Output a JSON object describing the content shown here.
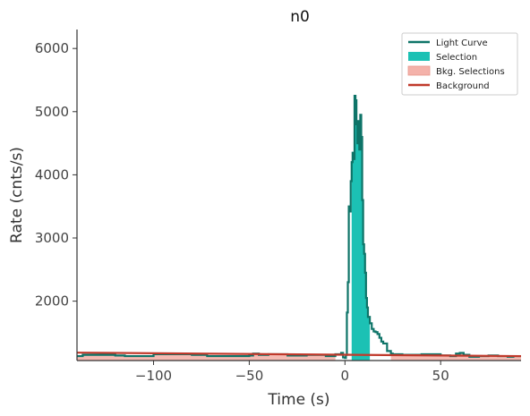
{
  "chart_data": {
    "type": "line",
    "title": "n0",
    "xlabel": "Time (s)",
    "ylabel": "Rate (cnts/s)",
    "xlim": [
      -140,
      92
    ],
    "ylim": [
      1060,
      6300
    ],
    "xticks": [
      -100,
      -50,
      0,
      50
    ],
    "xtick_labels": [
      "−100",
      "−50",
      "0",
      "50"
    ],
    "yticks": [
      2000,
      3000,
      4000,
      5000,
      6000
    ],
    "ytick_labels": [
      "2000",
      "3000",
      "4000",
      "5000",
      "6000"
    ],
    "grid": false,
    "legend_position": "top-right",
    "colors": {
      "light_curve": "#0e7468",
      "selection": "#1cc1b4",
      "bkg_selection": "#f4b2aa",
      "background": "#c0392b"
    },
    "legend": [
      {
        "label": "Light Curve",
        "kind": "line",
        "color": "#0e7468"
      },
      {
        "label": "Selection",
        "kind": "patch",
        "color": "#1cc1b4"
      },
      {
        "label": "Bkg. Selections",
        "kind": "patch",
        "color": "#f4b2aa"
      },
      {
        "label": "Background",
        "kind": "line",
        "color": "#c0392b"
      }
    ],
    "light_curve": {
      "x": [
        -140,
        -137,
        -120,
        -115,
        -100,
        -80,
        -72,
        -50,
        -48,
        -45,
        -40,
        -30,
        -20,
        -10,
        -5,
        -2,
        -1,
        0,
        0.5,
        1,
        1.5,
        2,
        2.5,
        3,
        3.5,
        4,
        4.5,
        5,
        5.5,
        6,
        6.5,
        7,
        7.5,
        8,
        8.5,
        9,
        9.5,
        10,
        10.5,
        11,
        11.5,
        12,
        13,
        14,
        15,
        16,
        17,
        18,
        19,
        20,
        22,
        24,
        25,
        30,
        40,
        50,
        55,
        58,
        60,
        62,
        65,
        70,
        75,
        80,
        85,
        88,
        92
      ],
      "y": [
        1130,
        1150,
        1140,
        1130,
        1160,
        1150,
        1130,
        1140,
        1170,
        1150,
        1160,
        1140,
        1150,
        1130,
        1160,
        1180,
        1110,
        1100,
        1150,
        1820,
        2300,
        3500,
        3420,
        3900,
        4200,
        4350,
        4250,
        5250,
        5180,
        4800,
        4500,
        4850,
        4400,
        4950,
        4600,
        3600,
        2900,
        2750,
        2450,
        2050,
        1900,
        1750,
        1650,
        1560,
        1520,
        1510,
        1480,
        1420,
        1360,
        1330,
        1210,
        1170,
        1160,
        1150,
        1160,
        1140,
        1130,
        1170,
        1180,
        1150,
        1120,
        1130,
        1140,
        1130,
        1120,
        1130,
        1110
      ]
    },
    "selection": {
      "from": 3.5,
      "to": 13
    },
    "bkg_selections": [
      {
        "from": -140,
        "to": -5
      },
      {
        "from": 24,
        "to": 92
      }
    ],
    "background_fit": {
      "x": [
        -140,
        92
      ],
      "y": [
        1185,
        1130
      ]
    }
  }
}
